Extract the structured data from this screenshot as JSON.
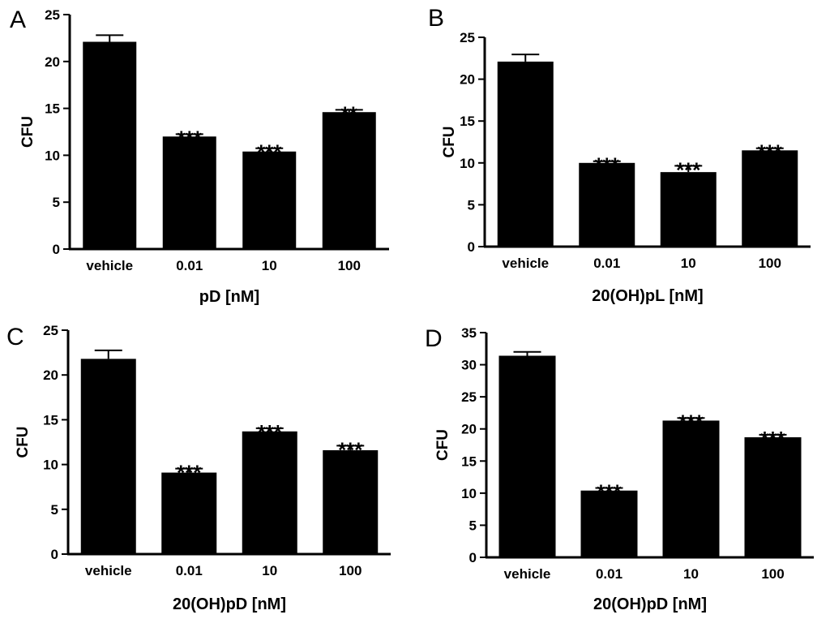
{
  "colors": {
    "bar": "#000000",
    "axis": "#000000",
    "background": "#ffffff"
  },
  "chart_data": [
    {
      "panel": "A",
      "type": "bar",
      "title": "",
      "xlabel": "pD [nM]",
      "ylabel": "CFU",
      "categories": [
        "vehicle",
        "0.01",
        "10",
        "100"
      ],
      "values": [
        22.1,
        12.0,
        10.4,
        14.6
      ],
      "errors": [
        0.7,
        0.25,
        0.35,
        0.25
      ],
      "significance": [
        "",
        "***",
        "***",
        "**"
      ],
      "ylim": [
        0,
        25
      ],
      "yticks": [
        "0",
        "5",
        "10",
        "15",
        "20",
        "25"
      ]
    },
    {
      "panel": "B",
      "type": "bar",
      "title": "",
      "xlabel": "20(OH)pL [nM]",
      "ylabel": "CFU",
      "categories": [
        "vehicle",
        "0.01",
        "10",
        "100"
      ],
      "values": [
        22.1,
        10.0,
        8.9,
        11.5
      ],
      "errors": [
        0.85,
        0.2,
        0.75,
        0.25
      ],
      "significance": [
        "",
        "***",
        "***",
        "***"
      ],
      "ylim": [
        0,
        25
      ],
      "yticks": [
        "0",
        "5",
        "10",
        "15",
        "20",
        "25"
      ]
    },
    {
      "panel": "C",
      "type": "bar",
      "title": "",
      "xlabel": "20(OH)pD [nM]",
      "ylabel": "CFU",
      "categories": [
        "vehicle",
        "0.01",
        "10",
        "100"
      ],
      "values": [
        21.8,
        9.1,
        13.7,
        11.6
      ],
      "errors": [
        0.95,
        0.45,
        0.35,
        0.5
      ],
      "significance": [
        "",
        "***",
        "***",
        "***"
      ],
      "ylim": [
        0,
        25
      ],
      "yticks": [
        "0",
        "5",
        "10",
        "15",
        "20",
        "25"
      ]
    },
    {
      "panel": "D",
      "type": "bar",
      "title": "",
      "xlabel": "20(OH)pD [nM]",
      "ylabel": "CFU",
      "categories": [
        "vehicle",
        "0.01",
        "10",
        "100"
      ],
      "values": [
        31.4,
        10.4,
        21.3,
        18.7
      ],
      "errors": [
        0.6,
        0.4,
        0.4,
        0.4
      ],
      "significance": [
        "",
        "***",
        "***",
        "***"
      ],
      "ylim": [
        0,
        35
      ],
      "yticks": [
        "0",
        "5",
        "10",
        "15",
        "20",
        "25",
        "30",
        "35"
      ]
    }
  ]
}
